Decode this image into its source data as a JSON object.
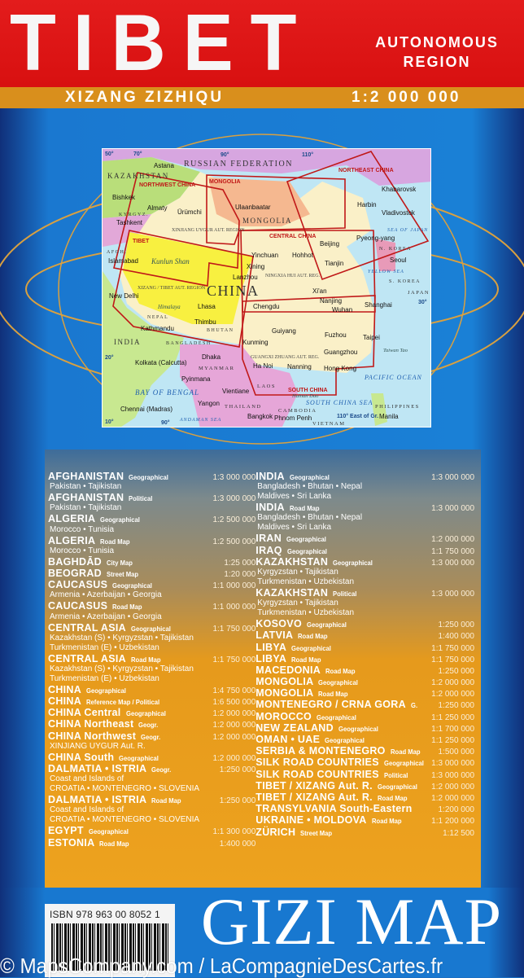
{
  "header": {
    "title": "TIBET",
    "subtitle_line1": "AUTONOMOUS",
    "subtitle_line2": "REGION",
    "local_name": "XIZANG ZIZHIQU",
    "scale": "1:2 000 000",
    "colors": {
      "red": "#e31c1c",
      "orange": "#d98f1c",
      "blue": "#1a78d0"
    }
  },
  "map": {
    "coverage_boxes": [
      "NORTHWEST CHINA",
      "MONGOLIA",
      "NORTHEAST CHINA",
      "CENTRAL CHINA",
      "TIBET",
      "SOUTH CHINA"
    ],
    "countries": [
      "RUSSIAN FEDERATION",
      "KAZAKHSTAN",
      "MONGOLIA",
      "CHINA",
      "INDIA",
      "MYANMAR",
      "LAOS",
      "THAILAND",
      "VIETNAM",
      "CAMBODIA",
      "BHUTAN",
      "NEPAL",
      "BANGLADESH",
      "N. KOREA",
      "S. KOREA",
      "JAPAN",
      "PHILIPPINES",
      "KYRGYZ.",
      "AFGH."
    ],
    "regions": [
      "XINJIANG UYGUR AUT. REGION",
      "XIZANG / TIBET AUT. REGION",
      "NINGXIA HUI AUT. REG.",
      "GUANGXI ZHUANG AUT. REG."
    ],
    "seas": [
      "BAY OF BENGAL",
      "ANDAMAN SEA",
      "SOUTH CHINA SEA",
      "PACIFIC OCEAN",
      "YELLOW SEA",
      "SEA OF JAPAN"
    ],
    "cities": [
      "Astana",
      "Bishkek",
      "Almaty",
      "Ürümchi",
      "Tashkent",
      "Islamabad",
      "New Delhi",
      "Lhasa",
      "Kathmandu",
      "Thimbu",
      "Dhaka",
      "Kolkata (Calcutta)",
      "Pyinmana",
      "Yangon",
      "Chennai (Madras)",
      "Ulaanbaatar",
      "Harbin",
      "Khabarovsk",
      "Vladivostok",
      "Beijing",
      "Pyeong-yang",
      "Seoul",
      "Tianjin",
      "Yinchuan",
      "Hohhot",
      "Xining",
      "Lanzhou",
      "Xi'an",
      "Chengdu",
      "Nanjing",
      "Wuhan",
      "Shanghai",
      "Guiyang",
      "Fuzhou",
      "Taipei",
      "Kunming",
      "Guangzhou",
      "Hong Kong",
      "Ha Noi",
      "Nanning",
      "Vientiane",
      "Bangkok",
      "Phnom Penh",
      "Manila"
    ],
    "features": [
      "Kunlun Shan",
      "Himalaya",
      "Hainan Dao",
      "Taiwan Tao"
    ],
    "graticule": [
      "50°",
      "70°",
      "90°",
      "110°",
      "30°",
      "20°",
      "10°",
      "90°",
      "110° East of Gr."
    ]
  },
  "catalog": {
    "left": [
      {
        "name": "AFGHANISTAN",
        "type": "Geographical",
        "scale": "1:3 000 000",
        "sub": [
          "Pakistan • Tajikistan"
        ]
      },
      {
        "name": "AFGHANISTAN",
        "type": "Political",
        "scale": "1:3 000 000",
        "sub": [
          "Pakistan • Tajikistan"
        ]
      },
      {
        "name": "ALGERIA",
        "type": "Geographical",
        "scale": "1:2 500 000",
        "sub": [
          "Morocco • Tunisia"
        ]
      },
      {
        "name": "ALGERIA",
        "type": "Road Map",
        "scale": "1:2 500 000",
        "sub": [
          "Morocco • Tunisia"
        ]
      },
      {
        "name": "BAGHDĀD",
        "type": "City Map",
        "scale": "1:25 000",
        "sub": []
      },
      {
        "name": "BEOGRAD",
        "type": "Street Map",
        "scale": "1:20 000",
        "sub": []
      },
      {
        "name": "CAUCASUS",
        "type": "Geographical",
        "scale": "1:1 000 000",
        "sub": [
          "Armenia • Azerbaijan • Georgia"
        ]
      },
      {
        "name": "CAUCASUS",
        "type": "Road Map",
        "scale": "1:1 000 000",
        "sub": [
          "Armenia • Azerbaijan • Georgia"
        ]
      },
      {
        "name": "CENTRAL ASIA",
        "type": "Geographical",
        "scale": "1:1 750 000",
        "sub": [
          "Kazakhstan (S) • Kyrgyzstan • Tajikistan",
          "Turkmenistan (E) • Uzbekistan"
        ]
      },
      {
        "name": "CENTRAL ASIA",
        "type": "Road Map",
        "scale": "1:1 750 000",
        "sub": [
          "Kazakhstan (S) • Kyrgyzstan • Tajikistan",
          "Turkmenistan (E) • Uzbekistan"
        ]
      },
      {
        "name": "CHINA",
        "type": "Geographical",
        "scale": "1:4 750 000",
        "sub": []
      },
      {
        "name": "CHINA",
        "type": "Reference Map / Political",
        "scale": "1:6 500 000",
        "sub": []
      },
      {
        "name": "CHINA Central",
        "type": "Geographical",
        "scale": "1:2 000 000",
        "sub": []
      },
      {
        "name": "CHINA Northeast",
        "type": "Geogr.",
        "scale": "1:2 000 000",
        "sub": []
      },
      {
        "name": "CHINA Northwest",
        "type": "Geogr.",
        "scale": "1:2 000 000",
        "sub": [
          "XINJIANG UYGUR Aut. R."
        ]
      },
      {
        "name": "CHINA South",
        "type": "Geographical",
        "scale": "1:2 000 000",
        "sub": []
      },
      {
        "name": "DALMATIA • ISTRIA",
        "type": "Geogr.",
        "scale": "1:250 000",
        "sub": [
          "Coast and Islands of",
          "CROATIA • MONTENEGRO • SLOVENIA"
        ]
      },
      {
        "name": "DALMATIA • ISTRIA",
        "type": "Road Map",
        "scale": "1:250 000",
        "sub": [
          "Coast and Islands of",
          "CROATIA • MONTENEGRO • SLOVENIA"
        ]
      },
      {
        "name": "EGYPT",
        "type": "Geographical",
        "scale": "1:1 300 000",
        "sub": []
      },
      {
        "name": "ESTONIA",
        "type": "Road Map",
        "scale": "1:400 000",
        "sub": []
      }
    ],
    "right": [
      {
        "name": "INDIA",
        "type": "Geographical",
        "scale": "1:3 000 000",
        "sub": [
          "Bangladesh • Bhutan • Nepal",
          "Maldives • Sri Lanka"
        ]
      },
      {
        "name": "INDIA",
        "type": "Road Map",
        "scale": "1:3 000 000",
        "sub": [
          "Bangladesh • Bhutan • Nepal",
          "Maldives • Sri Lanka"
        ]
      },
      {
        "name": "IRAN",
        "type": "Geographical",
        "scale": "1:2 000 000",
        "sub": []
      },
      {
        "name": "IRAQ",
        "type": "Geographical",
        "scale": "1:1 750 000",
        "sub": []
      },
      {
        "name": "KAZAKHSTAN",
        "type": "Geographical",
        "scale": "1:3 000 000",
        "sub": [
          "Kyrgyzstan • Tajikistan",
          "Turkmenistan • Uzbekistan"
        ]
      },
      {
        "name": "KAZAKHSTAN",
        "type": "Political",
        "scale": "1:3 000 000",
        "sub": [
          "Kyrgyzstan • Tajikistan",
          "Turkmenistan • Uzbekistan"
        ]
      },
      {
        "name": "KOSOVO",
        "type": "Geographical",
        "scale": "1:250 000",
        "sub": []
      },
      {
        "name": "LATVIA",
        "type": "Road Map",
        "scale": "1:400 000",
        "sub": []
      },
      {
        "name": "LIBYA",
        "type": "Geographical",
        "scale": "1:1 750 000",
        "sub": []
      },
      {
        "name": "LIBYA",
        "type": "Road Map",
        "scale": "1:1 750 000",
        "sub": []
      },
      {
        "name": "MACEDONIA",
        "type": "Road Map",
        "scale": "1:250 000",
        "sub": []
      },
      {
        "name": "MONGOLIA",
        "type": "Geographical",
        "scale": "1:2 000 000",
        "sub": []
      },
      {
        "name": "MONGOLIA",
        "type": "Road Map",
        "scale": "1:2 000 000",
        "sub": []
      },
      {
        "name": "MONTENEGRO / CRNA GORA",
        "type": "G.",
        "scale": "1:250 000",
        "sub": []
      },
      {
        "name": "MOROCCO",
        "type": "Geographical",
        "scale": "1:1 250 000",
        "sub": []
      },
      {
        "name": "NEW ZEALAND",
        "type": "Geographical",
        "scale": "1:1 700 000",
        "sub": []
      },
      {
        "name": "OMAN • UAE",
        "type": "Geographical",
        "scale": "1:1 250 000",
        "sub": []
      },
      {
        "name": "SERBIA & MONTENEGRO",
        "type": "Road Map",
        "scale": "1:500 000",
        "sub": []
      },
      {
        "name": "SILK ROAD COUNTRIES",
        "type": "Geographical",
        "scale": "1:3 000 000",
        "sub": []
      },
      {
        "name": "SILK ROAD COUNTRIES",
        "type": "Political",
        "scale": "1:3 000 000",
        "sub": []
      },
      {
        "name": "TIBET / XIZANG Aut. R.",
        "type": "Geographical",
        "scale": "1:2 000 000",
        "sub": []
      },
      {
        "name": "TIBET / XIZANG Aut. R.",
        "type": "Road Map",
        "scale": "1:2 000 000",
        "sub": []
      },
      {
        "name": "TRANSYLVANIA South-Eastern",
        "type": "",
        "scale": "1:200 000",
        "sub": []
      },
      {
        "name": "UKRAINE • MOLDOVA",
        "type": "Road Map",
        "scale": "1:1 200 000",
        "sub": []
      },
      {
        "name": "ZÜRICH",
        "type": "Street Map",
        "scale": "1:12 500",
        "sub": []
      }
    ]
  },
  "footer": {
    "isbn": "ISBN 978 963 00 8052 1",
    "barcode_digits": "9789630080521",
    "brand": "GIZI MAP",
    "watermark": "© MapsCompany.com / LaCompagnieDesCartes.fr"
  }
}
